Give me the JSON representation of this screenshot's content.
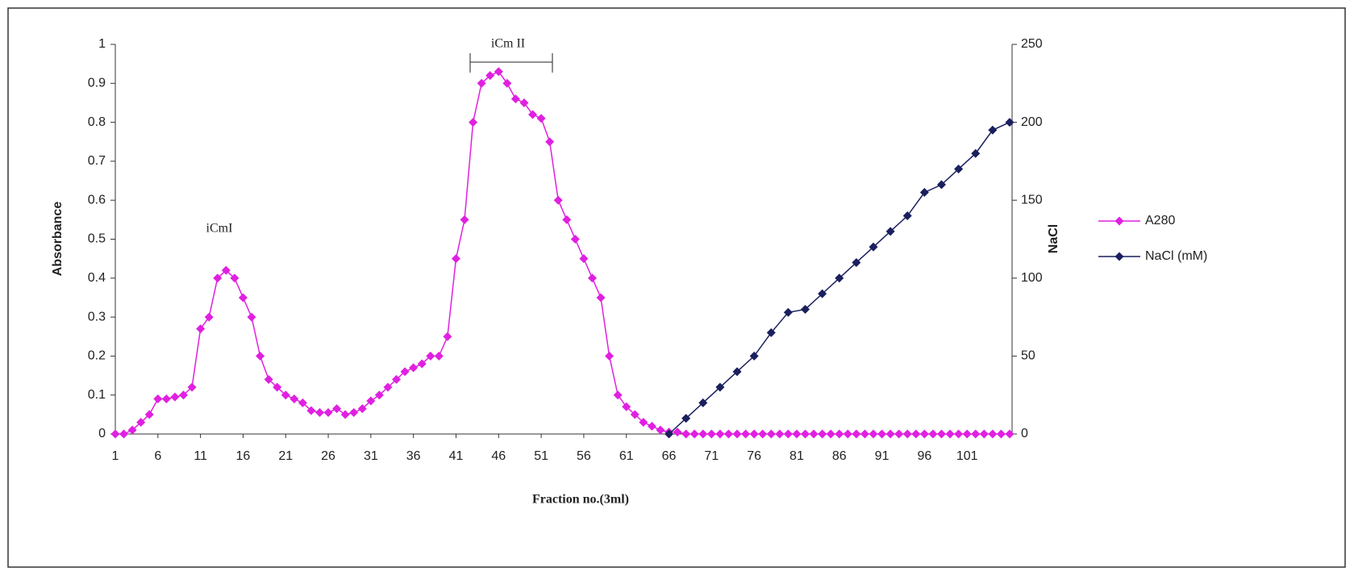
{
  "chart_data": {
    "type": "line",
    "annotations": [
      "iCmI",
      "iCm II"
    ],
    "xlabel": "Fraction no.(3ml)",
    "ylabel": "Absorbance",
    "y2label": "NaCl",
    "xlim": [
      1,
      106
    ],
    "xticks": [
      1,
      6,
      11,
      16,
      21,
      26,
      31,
      36,
      41,
      46,
      51,
      56,
      61,
      66,
      71,
      76,
      81,
      86,
      91,
      96,
      101
    ],
    "ylim": [
      0,
      1
    ],
    "yticks": [
      0,
      0.1,
      0.2,
      0.3,
      0.4,
      0.5,
      0.6,
      0.7,
      0.8,
      0.9,
      1
    ],
    "y2lim": [
      0,
      250
    ],
    "y2ticks": [
      0,
      50,
      100,
      150,
      200,
      250
    ],
    "legend": "right",
    "series": [
      {
        "name": "A280",
        "color": "#e020e0",
        "x": [
          1,
          2,
          3,
          4,
          5,
          6,
          7,
          8,
          9,
          10,
          11,
          12,
          13,
          14,
          15,
          16,
          17,
          18,
          19,
          20,
          21,
          22,
          23,
          24,
          25,
          26,
          27,
          28,
          29,
          30,
          31,
          32,
          33,
          34,
          35,
          36,
          37,
          38,
          39,
          40,
          41,
          42,
          43,
          44,
          45,
          46,
          47,
          48,
          49,
          50,
          51,
          52,
          53,
          54,
          55,
          56,
          57,
          58,
          59,
          60,
          61,
          62,
          63,
          64,
          65,
          66,
          67,
          68,
          69,
          70,
          71,
          72,
          73,
          74,
          75,
          76,
          77,
          78,
          79,
          80,
          81,
          82,
          83,
          84,
          85,
          86,
          87,
          88,
          89,
          90,
          91,
          92,
          93,
          94,
          95,
          96,
          97,
          98,
          99,
          100,
          101,
          102,
          103,
          104,
          105,
          106
        ],
        "values": [
          0,
          0,
          0.01,
          0.03,
          0.05,
          0.09,
          0.09,
          0.095,
          0.1,
          0.12,
          0.27,
          0.3,
          0.4,
          0.42,
          0.4,
          0.35,
          0.3,
          0.2,
          0.14,
          0.12,
          0.1,
          0.09,
          0.08,
          0.06,
          0.055,
          0.055,
          0.065,
          0.05,
          0.055,
          0.065,
          0.085,
          0.1,
          0.12,
          0.14,
          0.16,
          0.17,
          0.18,
          0.2,
          0.2,
          0.25,
          0.45,
          0.55,
          0.8,
          0.9,
          0.92,
          0.93,
          0.9,
          0.86,
          0.85,
          0.82,
          0.81,
          0.75,
          0.6,
          0.55,
          0.5,
          0.45,
          0.4,
          0.35,
          0.2,
          0.1,
          0.07,
          0.05,
          0.03,
          0.02,
          0.01,
          0.005,
          0.005,
          0,
          0,
          0,
          0,
          0,
          0,
          0,
          0,
          0,
          0,
          0,
          0,
          0,
          0,
          0,
          0,
          0,
          0,
          0,
          0,
          0,
          0,
          0,
          0,
          0,
          0,
          0,
          0,
          0,
          0,
          0,
          0,
          0,
          0,
          0,
          0,
          0,
          0,
          0
        ]
      },
      {
        "name": "NaCl (mM)",
        "color": "#1a1f5e",
        "axis": "y2",
        "x": [
          66,
          68,
          70,
          72,
          74,
          76,
          78,
          80,
          82,
          84,
          86,
          88,
          90,
          92,
          94,
          96,
          98,
          100,
          102,
          104,
          106
        ],
        "values": [
          0,
          10,
          20,
          30,
          40,
          50,
          65,
          78,
          80,
          90,
          100,
          110,
          120,
          130,
          140,
          155,
          160,
          170,
          180,
          195,
          200
        ]
      }
    ]
  }
}
